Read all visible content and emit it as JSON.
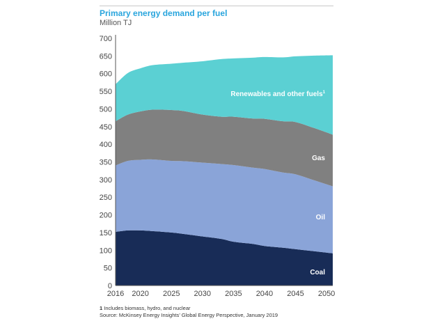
{
  "title": "Primary energy demand per fuel",
  "subtitle": "Million TJ",
  "footnote": {
    "marker": "1",
    "text": " Includes biomass, hydro, and nuclear"
  },
  "source": "Source: McKinsey Energy Insights’ Global Energy Perspective, January 2019",
  "chart_data": {
    "type": "area",
    "stacked": true,
    "title": "Primary energy demand per fuel",
    "ylabel": "Million TJ",
    "xlabel": "",
    "xlim": [
      2016,
      2051
    ],
    "ylim": [
      0,
      700
    ],
    "x_ticks": [
      2016,
      2020,
      2025,
      2030,
      2035,
      2040,
      2045,
      2050
    ],
    "y_ticks": [
      0,
      50,
      100,
      150,
      200,
      250,
      300,
      350,
      400,
      450,
      500,
      550,
      600,
      650,
      700
    ],
    "grid": false,
    "legend": "inline labels",
    "x": [
      2016,
      2018,
      2020,
      2022,
      2025,
      2027,
      2030,
      2033,
      2035,
      2038,
      2040,
      2043,
      2045,
      2048,
      2051
    ],
    "series": [
      {
        "name": "Coal",
        "color": "#182c57",
        "values": [
          152,
          156,
          156,
          154,
          150,
          146,
          139,
          132,
          124,
          118,
          112,
          107,
          103,
          97,
          91
        ]
      },
      {
        "name": "Oil",
        "color": "#8aa4d8",
        "values": [
          188,
          197,
          200,
          203,
          203,
          206,
          209,
          212,
          217,
          216,
          218,
          213,
          212,
          201,
          190
        ]
      },
      {
        "name": "Gas",
        "color": "#808080",
        "values": [
          125,
          131,
          137,
          141,
          144,
          142,
          136,
          134,
          137,
          139,
          142,
          145,
          148,
          148,
          146
        ]
      },
      {
        "name": "Renewables and other fuels",
        "footnote_marker": "1",
        "color": "#5bd0d3",
        "values": [
          105,
          118,
          122,
          126,
          131,
          137,
          151,
          163,
          165,
          172,
          175,
          181,
          186,
          205,
          225
        ]
      }
    ]
  }
}
